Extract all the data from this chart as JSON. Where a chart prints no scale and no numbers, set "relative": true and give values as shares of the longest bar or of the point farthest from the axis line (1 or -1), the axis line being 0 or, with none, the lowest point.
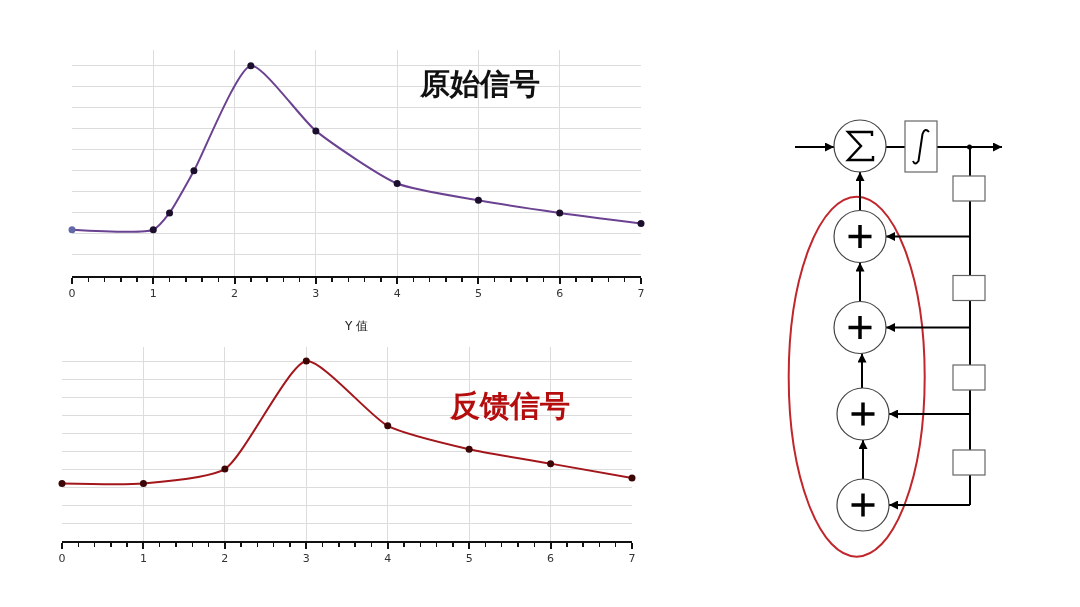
{
  "chart_data": [
    {
      "type": "line",
      "title": "原始信号",
      "xlabel": "Y 值",
      "x": [
        0,
        1,
        1.2,
        1.5,
        2.2,
        3,
        4,
        5,
        6,
        7
      ],
      "series": [
        {
          "color": "#6a4291",
          "colors": [
            "#6468a8",
            "#1c0f2e",
            "#1c0f2e",
            "#1c0f2e",
            "#1c0f2e",
            "#1c0f2e",
            "#1c0f2e",
            "#1c0f2e",
            "#1c0f2e",
            "#1c0f2e"
          ],
          "values": [
            0.22,
            0.22,
            0.3,
            0.5,
            1,
            0.69,
            0.44,
            0.36,
            0.3,
            0.25
          ]
        }
      ],
      "relative": true,
      "xlim": [
        0,
        7
      ],
      "xticks": [
        0,
        1,
        2,
        3,
        4,
        5,
        6,
        7
      ],
      "grid": true,
      "marker": "circle",
      "line_style": "solid"
    },
    {
      "type": "line",
      "title": "反馈信号",
      "x": [
        0,
        1,
        2,
        3,
        4,
        5,
        6,
        7
      ],
      "series": [
        {
          "color": "#a3161b",
          "colors": [
            "#3d0606",
            "#3d0606",
            "#3d0606",
            "#3d0606",
            "#3d0606",
            "#3d0606",
            "#3d0606",
            "#3d0606"
          ],
          "values": [
            0.32,
            0.32,
            0.4,
            1,
            0.64,
            0.51,
            0.43,
            0.35
          ]
        }
      ],
      "relative": true,
      "xlim": [
        0,
        7
      ],
      "xticks": [
        0,
        1,
        2,
        3,
        4,
        5,
        6,
        7
      ],
      "grid": true,
      "marker": "circle",
      "line_style": "solid"
    }
  ]
}
